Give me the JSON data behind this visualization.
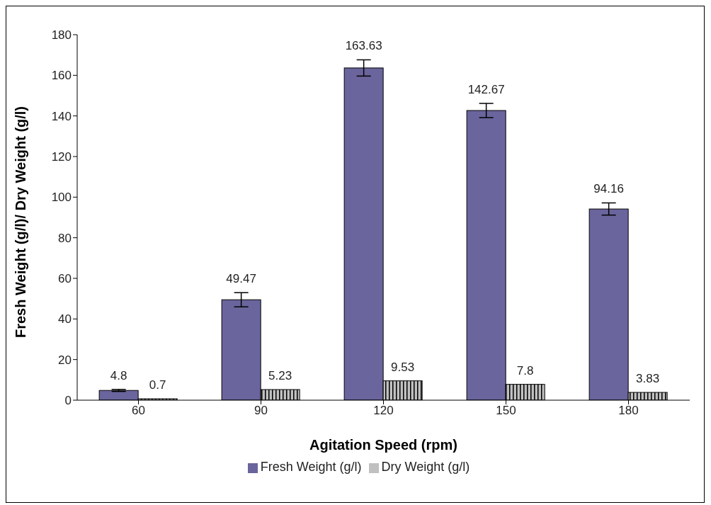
{
  "chart_data": {
    "type": "bar",
    "xlabel": "Agitation Speed (rpm)",
    "ylabel": "Fresh Weight (g/l)/ Dry Weight (g/l)",
    "categories": [
      "60",
      "90",
      "120",
      "150",
      "180"
    ],
    "series": [
      {
        "name": "Fresh Weight (g/l)",
        "color": "#6a659d",
        "values": [
          4.8,
          49.47,
          163.63,
          142.67,
          94.16
        ],
        "errors": [
          0.5,
          3.5,
          4,
          3.5,
          3
        ]
      },
      {
        "name": "Dry Weight (g/l)",
        "color": "#c0c0c0",
        "values": [
          0.7,
          5.23,
          9.53,
          7.8,
          3.83
        ]
      }
    ],
    "ylim": [
      0,
      180
    ],
    "yticks": [
      0,
      20,
      40,
      60,
      80,
      100,
      120,
      140,
      160,
      180
    ],
    "data_labels": true,
    "grid": false,
    "legend": "bottom"
  }
}
